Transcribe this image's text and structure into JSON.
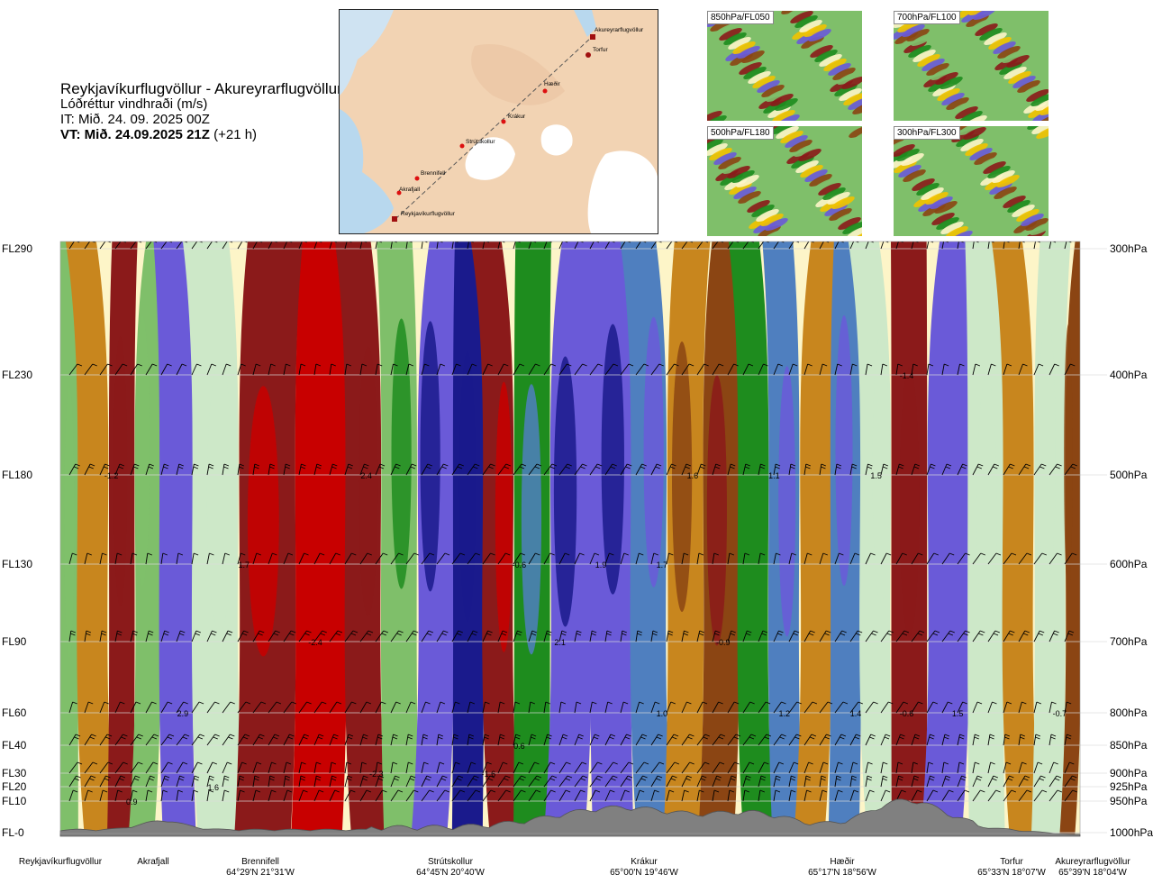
{
  "header": {
    "route": "Reykjavíkurflugvöllur - Akureyrarflugvöllur",
    "product": "Lóðréttur vindhraði (m/s)",
    "it": "IT: Mið. 24. 09. 2025 00Z",
    "vt_bold": "VT: Mið. 24.09.2025 21Z",
    "vt_lead": "(+21 h)"
  },
  "map": {
    "points": [
      {
        "name": "Akureyrarflugvöllur"
      },
      {
        "name": "Torfur"
      },
      {
        "name": "Hæðir"
      },
      {
        "name": "Krákur"
      },
      {
        "name": "Strútskollur"
      },
      {
        "name": "Brennifell"
      },
      {
        "name": "Akrafjall"
      },
      {
        "name": "Reykjavíkurflugvöllur"
      }
    ]
  },
  "thumbnails": [
    {
      "label": "850hPa/FL050"
    },
    {
      "label": "700hPa/FL100"
    },
    {
      "label": "500hPa/FL180"
    },
    {
      "label": "300hPa/FL300"
    }
  ],
  "chart_data": {
    "type": "heatmap",
    "title": "Lóðréttur vindhraði (m/s)",
    "y_left_ticks": [
      "FL290",
      "FL230",
      "FL180",
      "FL130",
      "FL90",
      "FL60",
      "FL40",
      "FL30",
      "FL20",
      "FL10",
      "FL-0"
    ],
    "y_right_ticks": [
      "300hPa",
      "400hPa",
      "500hPa",
      "600hPa",
      "700hPa",
      "800hPa",
      "850hPa",
      "900hPa",
      "925hPa",
      "950hPa",
      "1000hPa"
    ],
    "pressure_levels_hPa": [
      300,
      400,
      500,
      600,
      700,
      800,
      850,
      900,
      925,
      950,
      1000
    ],
    "x_locations": [
      {
        "name": "Reykjavíkurflugvöllur",
        "coord": ""
      },
      {
        "name": "Akrafjall",
        "coord": ""
      },
      {
        "name": "Brennifell",
        "coord": "64°29'N 21°31'W"
      },
      {
        "name": "Strútskollur",
        "coord": "64°45'N 20°40'W"
      },
      {
        "name": "Krákur",
        "coord": "65°00'N 19°46'W"
      },
      {
        "name": "Hæðir",
        "coord": "65°17'N 18°56'W"
      },
      {
        "name": "Torfur",
        "coord": "65°33'N 18°07'W"
      },
      {
        "name": "Akureyrarflugvöllur",
        "coord": "65°39'N 18°04'W"
      }
    ],
    "value_labels": [
      {
        "text": "-1.2",
        "pos": 0.05,
        "hPa": 500
      },
      {
        "text": "2.4",
        "pos": 0.3,
        "hPa": 500
      },
      {
        "text": "1.6",
        "pos": 0.62,
        "hPa": 500
      },
      {
        "text": "1.1",
        "pos": 0.7,
        "hPa": 500
      },
      {
        "text": "1.5",
        "pos": 0.8,
        "hPa": 500
      },
      {
        "text": "-1.4",
        "pos": 0.83,
        "hPa": 400
      },
      {
        "text": "1.7",
        "pos": 0.18,
        "hPa": 600
      },
      {
        "text": "-0.6",
        "pos": 0.45,
        "hPa": 600
      },
      {
        "text": "1.9",
        "pos": 0.53,
        "hPa": 600
      },
      {
        "text": "1.7",
        "pos": 0.59,
        "hPa": 600
      },
      {
        "text": "-2.4",
        "pos": 0.25,
        "hPa": 700
      },
      {
        "text": "2.1",
        "pos": 0.49,
        "hPa": 700
      },
      {
        "text": "-0.9",
        "pos": 0.65,
        "hPa": 700
      },
      {
        "text": "2.9",
        "pos": 0.12,
        "hPa": 800
      },
      {
        "text": "1.0",
        "pos": 0.59,
        "hPa": 800
      },
      {
        "text": "1.2",
        "pos": 0.71,
        "hPa": 800
      },
      {
        "text": "1.4",
        "pos": 0.78,
        "hPa": 800
      },
      {
        "text": "-0.6",
        "pos": 0.83,
        "hPa": 800
      },
      {
        "text": "1.5",
        "pos": 0.88,
        "hPa": 800
      },
      {
        "text": "-0.7",
        "pos": 0.98,
        "hPa": 800
      },
      {
        "text": "0.6",
        "pos": 0.45,
        "hPa": 850
      },
      {
        "text": "-2.3",
        "pos": 0.31,
        "hPa": 900
      },
      {
        "text": "-1.6",
        "pos": 0.42,
        "hPa": 900
      },
      {
        "text": "1.6",
        "pos": 0.15,
        "hPa": 925
      },
      {
        "text": "0.9",
        "pos": 0.07,
        "hPa": 950
      }
    ],
    "bands": [
      {
        "pos": 0.0,
        "value": 0.3
      },
      {
        "pos": 0.035,
        "value": -0.3
      },
      {
        "pos": 0.06,
        "value": -1.2
      },
      {
        "pos": 0.085,
        "value": 0.3
      },
      {
        "pos": 0.11,
        "value": 1.6
      },
      {
        "pos": 0.15,
        "value": 0.2
      },
      {
        "pos": 0.2,
        "value": -1.5
      },
      {
        "pos": 0.26,
        "value": -2.4
      },
      {
        "pos": 0.3,
        "value": -1.3
      },
      {
        "pos": 0.33,
        "value": 0.5
      },
      {
        "pos": 0.37,
        "value": 2.0
      },
      {
        "pos": 0.4,
        "value": 2.8
      },
      {
        "pos": 0.43,
        "value": -1.6
      },
      {
        "pos": 0.46,
        "value": 0.9
      },
      {
        "pos": 0.5,
        "value": 2.1
      },
      {
        "pos": 0.54,
        "value": 1.9
      },
      {
        "pos": 0.58,
        "value": 1.2
      },
      {
        "pos": 0.61,
        "value": -0.5
      },
      {
        "pos": 0.65,
        "value": -0.9
      },
      {
        "pos": 0.68,
        "value": 0.6
      },
      {
        "pos": 0.71,
        "value": 1.2
      },
      {
        "pos": 0.74,
        "value": -0.3
      },
      {
        "pos": 0.77,
        "value": 1.4
      },
      {
        "pos": 0.8,
        "value": 0.2
      },
      {
        "pos": 0.83,
        "value": -1.4
      },
      {
        "pos": 0.87,
        "value": 1.5
      },
      {
        "pos": 0.91,
        "value": 0.2
      },
      {
        "pos": 0.94,
        "value": -0.3
      },
      {
        "pos": 0.97,
        "value": 0.1
      },
      {
        "pos": 1.0,
        "value": -0.7
      }
    ],
    "colors": {
      "strong_down": "#c80000",
      "down": "#8b1a1a",
      "moderate_down": "#8b4513",
      "weak_down": "#c8861e",
      "slight_down": "#f2c200",
      "neutral": "#fdf5c8",
      "slight_up": "#cde8c8",
      "weak_up": "#7fbf6a",
      "up": "#1e8c1e",
      "moderate_up": "#4f7fbf",
      "strong_up": "#6a5ad8",
      "very_strong_up": "#1a1a8c",
      "terrain": "#808080"
    }
  }
}
